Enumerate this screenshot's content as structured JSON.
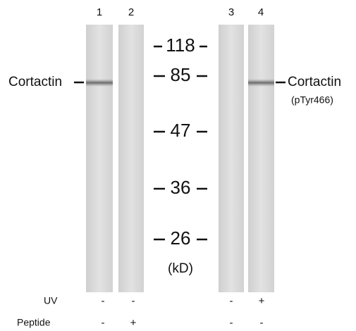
{
  "lanes": [
    {
      "label": "1",
      "uv": "-",
      "peptide": "-"
    },
    {
      "label": "2",
      "uv": "-",
      "peptide": "+"
    },
    {
      "label": "3",
      "uv": "-",
      "peptide": "-"
    },
    {
      "label": "4",
      "uv": "+",
      "peptide": "-"
    }
  ],
  "markers": [
    "118",
    "85",
    "47",
    "36",
    "26"
  ],
  "unit": "(kD)",
  "left_label": "Cortactin",
  "right_label": {
    "name": "Cortactin",
    "site": "(pTyr466)"
  },
  "row_labels": {
    "uv": "UV",
    "peptide": "Peptide"
  }
}
